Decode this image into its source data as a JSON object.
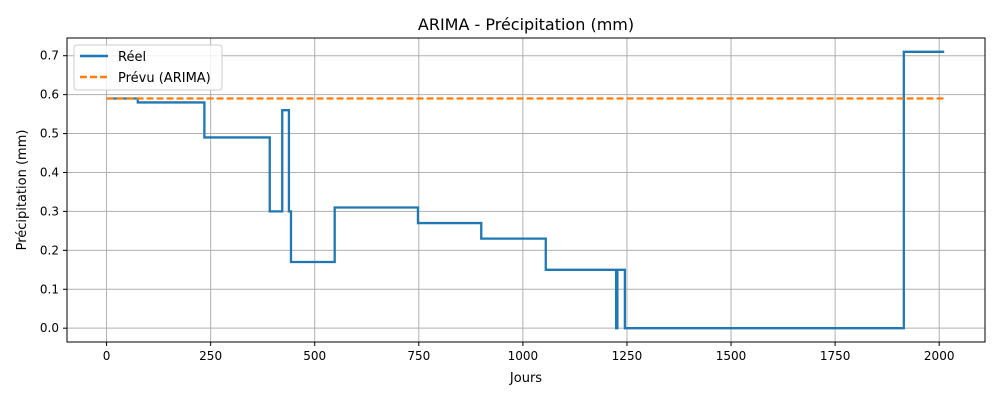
{
  "chart_data": {
    "type": "line",
    "title": "ARIMA - Précipitation (mm)",
    "xlabel": "Jours",
    "ylabel": "Précipitation (mm)",
    "xlim": [
      -95,
      2110
    ],
    "ylim": [
      -0.0355,
      0.7455
    ],
    "xticks": [
      0,
      250,
      500,
      750,
      1000,
      1250,
      1500,
      1750,
      2000
    ],
    "yticks": [
      0.0,
      0.1,
      0.2,
      0.3,
      0.4,
      0.5,
      0.6,
      0.7
    ],
    "xtick_labels": [
      "0",
      "250",
      "500",
      "750",
      "1000",
      "1250",
      "1500",
      "1750",
      "2000"
    ],
    "ytick_labels": [
      "0.0",
      "0.1",
      "0.2",
      "0.3",
      "0.4",
      "0.5",
      "0.6",
      "0.7"
    ],
    "grid": true,
    "legend_position": "top-left",
    "series": [
      {
        "name": "Réel",
        "color": "#1f77b4",
        "style": "solid",
        "step": "post",
        "x": [
          0,
          75,
          235,
          392,
          422,
          438,
          443,
          548,
          748,
          900,
          1055,
          1224,
          1227,
          1230,
          1245,
          1915,
          2012
        ],
        "y": [
          0.59,
          0.58,
          0.49,
          0.3,
          0.56,
          0.3,
          0.17,
          0.31,
          0.27,
          0.23,
          0.15,
          0.0,
          0.15,
          0.15,
          0.0,
          0.71,
          0.71
        ]
      },
      {
        "name": "Prévu (ARIMA)",
        "color": "#ff7f0e",
        "style": "dashed",
        "x": [
          0,
          2012
        ],
        "y": [
          0.59,
          0.59
        ]
      }
    ]
  }
}
